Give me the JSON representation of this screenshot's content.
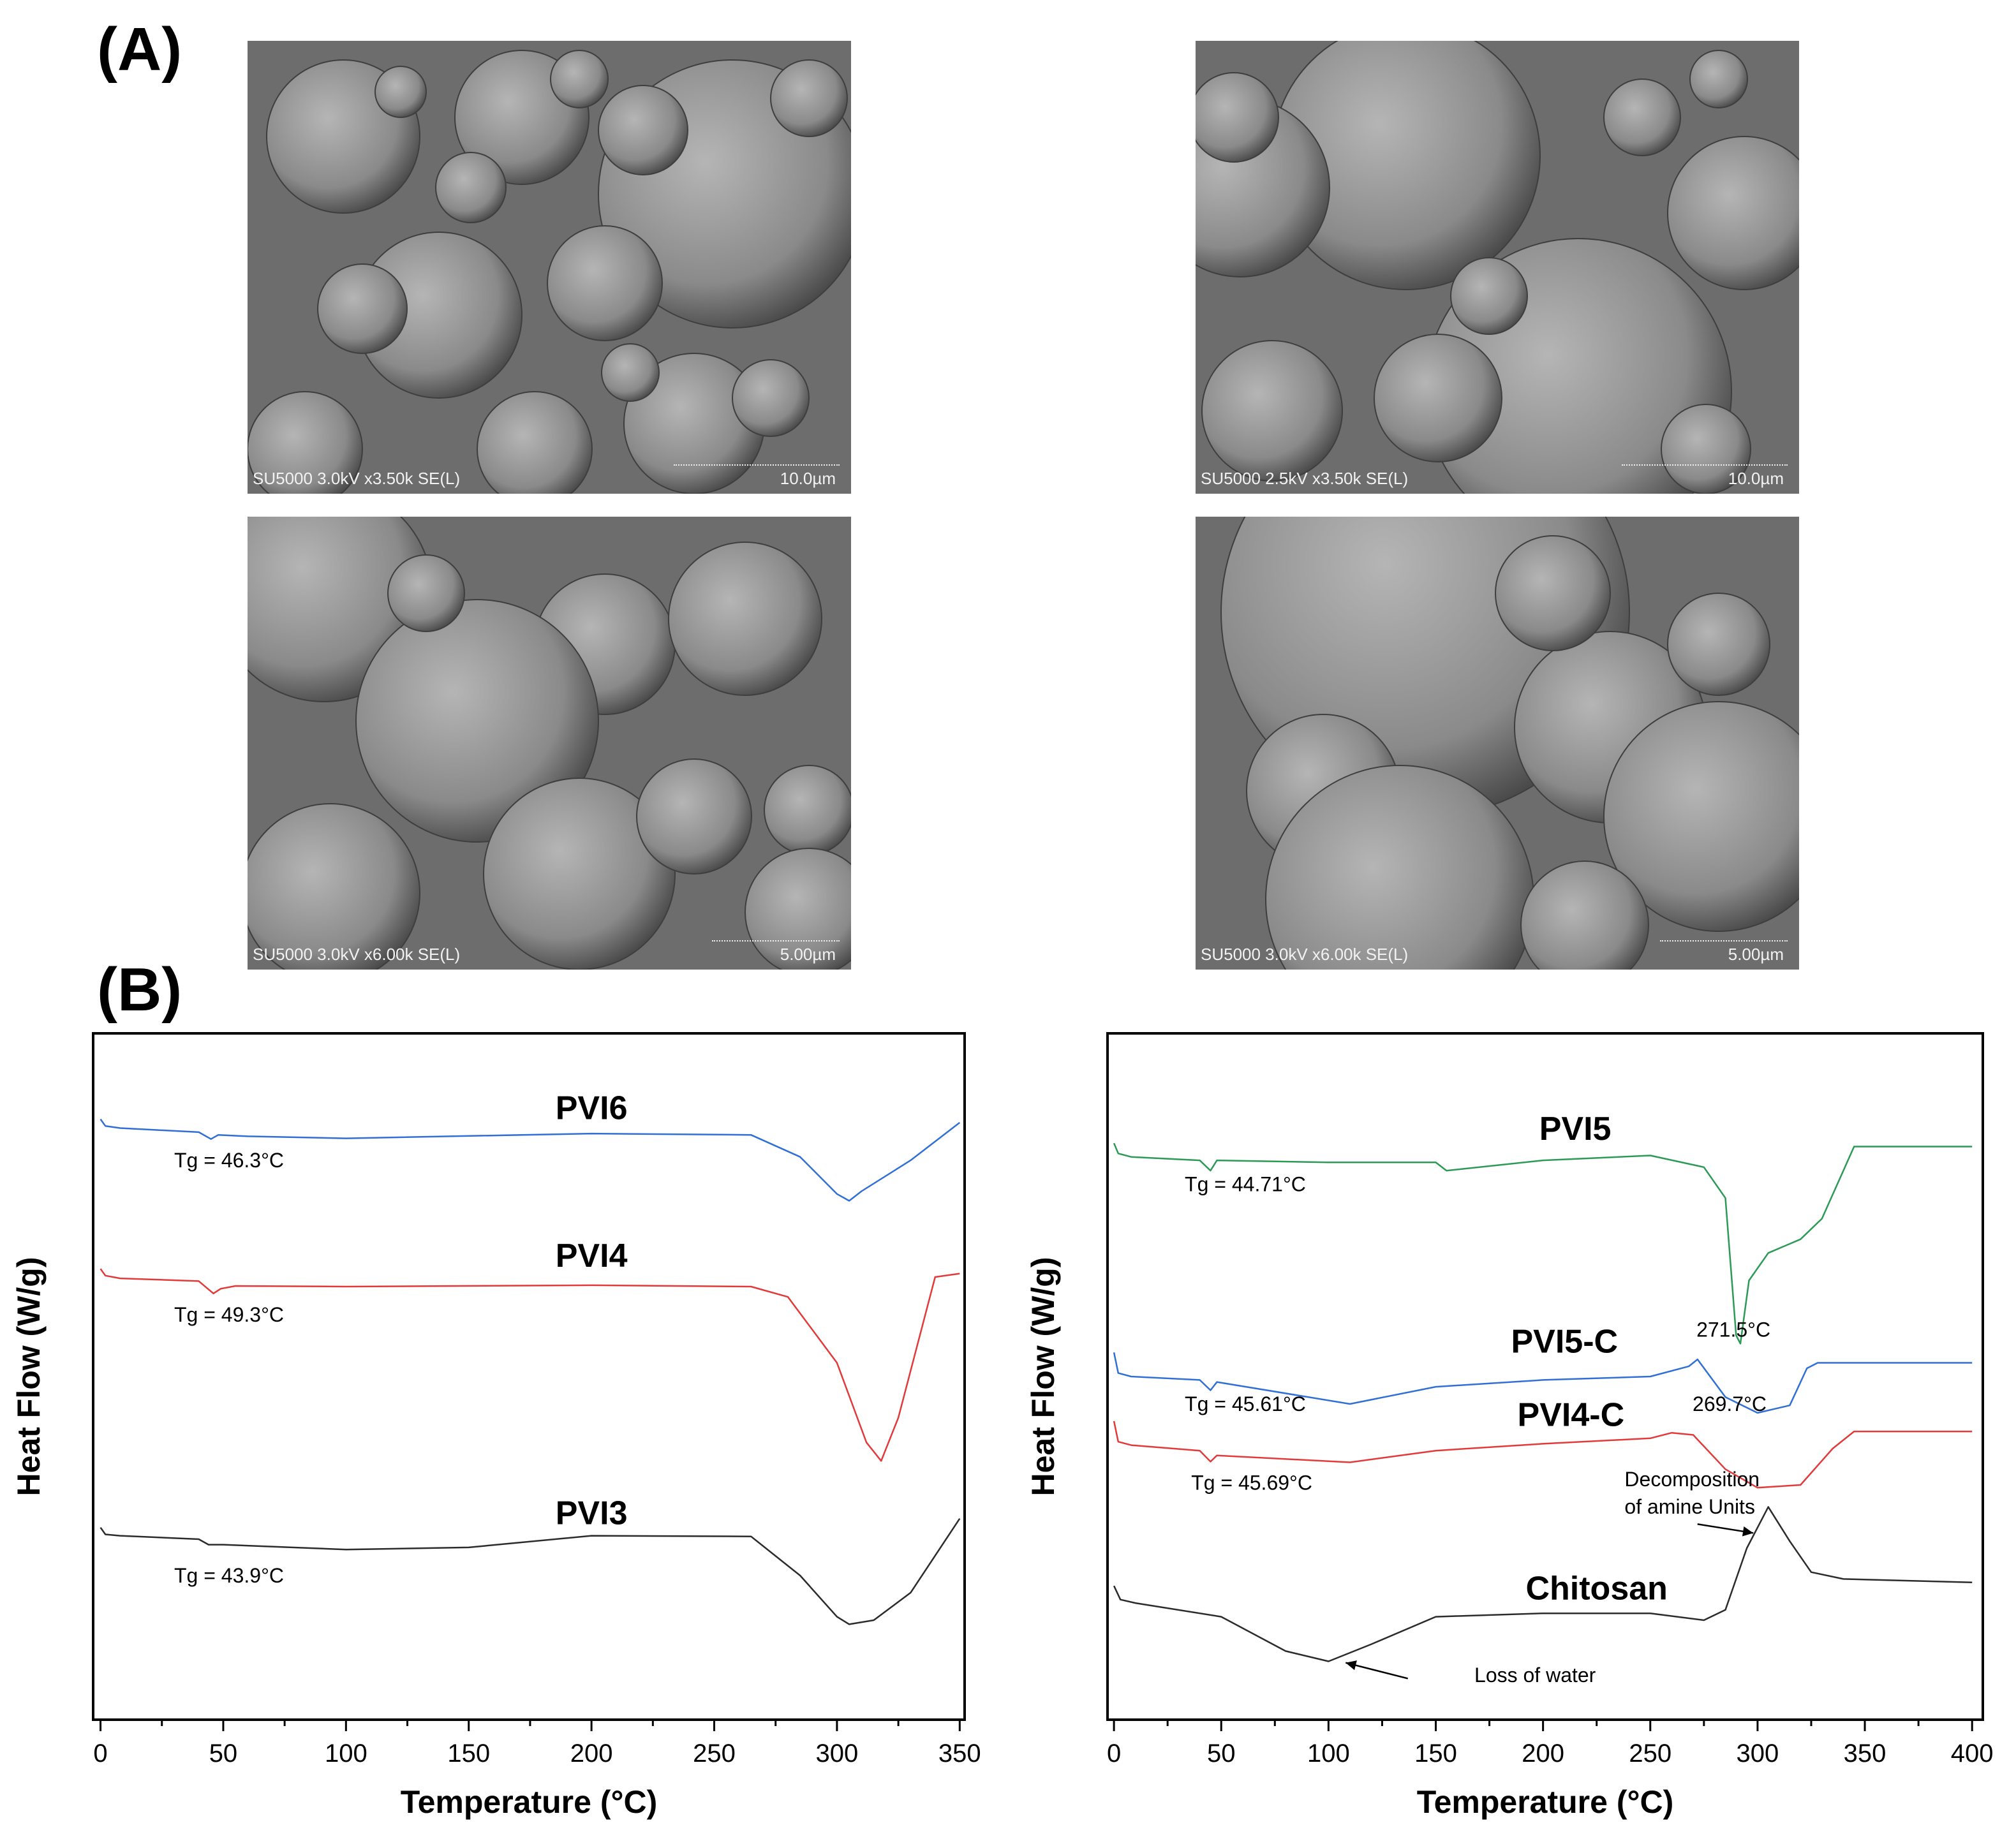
{
  "panels": {
    "a_label": "(A)",
    "b_label": "(B)"
  },
  "sem_images": [
    {
      "caption": "SU5000 3.0kV x3.50k SE(L)",
      "scale": "10.0µm"
    },
    {
      "caption": "SU5000 2.5kV x3.50k SE(L)",
      "scale": "10.0µm"
    },
    {
      "caption": "SU5000 3.0kV x6.00k SE(L)",
      "scale": "5.00µm"
    },
    {
      "caption": "SU5000 3.0kV x6.00k SE(L)",
      "scale": "5.00µm"
    }
  ],
  "chart_data": [
    {
      "type": "line",
      "xlabel": "Temperature (°C)",
      "ylabel": "Heat Flow (W/g)",
      "xlim": [
        -3,
        352
      ],
      "xticks": [
        0,
        50,
        100,
        150,
        200,
        250,
        300,
        350
      ],
      "ylim": [
        0,
        1
      ],
      "series": [
        {
          "name": "PVI6",
          "color": "#2f6fd6",
          "x": [
            0,
            2,
            8,
            40,
            45,
            48,
            60,
            100,
            200,
            265,
            285,
            300,
            305,
            310,
            330,
            350
          ],
          "y": [
            0.875,
            0.865,
            0.862,
            0.856,
            0.846,
            0.852,
            0.85,
            0.847,
            0.854,
            0.852,
            0.82,
            0.766,
            0.756,
            0.77,
            0.815,
            0.87
          ]
        },
        {
          "name": "PVI4",
          "color": "#e23a3a",
          "x": [
            0,
            2,
            8,
            40,
            46,
            49,
            55,
            100,
            200,
            265,
            280,
            300,
            312,
            318,
            325,
            340,
            350
          ],
          "y": [
            0.657,
            0.647,
            0.643,
            0.639,
            0.621,
            0.628,
            0.632,
            0.631,
            0.633,
            0.631,
            0.616,
            0.52,
            0.404,
            0.377,
            0.44,
            0.645,
            0.65
          ]
        },
        {
          "name": "PVI3",
          "color": "#2b2b2b",
          "x": [
            0,
            2,
            8,
            40,
            44,
            50,
            100,
            150,
            200,
            265,
            285,
            300,
            305,
            315,
            330,
            350
          ],
          "y": [
            0.28,
            0.27,
            0.268,
            0.263,
            0.255,
            0.255,
            0.248,
            0.251,
            0.268,
            0.267,
            0.21,
            0.15,
            0.139,
            0.145,
            0.185,
            0.293
          ]
        }
      ],
      "labels": [
        {
          "text": "PVI6",
          "x": 200,
          "y": 0.875,
          "weight": "bold"
        },
        {
          "text": "PVI4",
          "x": 200,
          "y": 0.66,
          "weight": "bold"
        },
        {
          "text": "PVI3",
          "x": 200,
          "y": 0.285,
          "weight": "bold"
        },
        {
          "text": "Tg = 46.3°C",
          "x": 30,
          "y": 0.805,
          "weight": "normal"
        },
        {
          "text": "Tg = 49.3°C",
          "x": 30,
          "y": 0.58,
          "weight": "normal"
        },
        {
          "text": "Tg = 43.9°C",
          "x": 30,
          "y": 0.2,
          "weight": "normal"
        }
      ],
      "annotations": []
    },
    {
      "type": "line",
      "xlabel": "Temperature (°C)",
      "ylabel": "Heat Flow (W/g)",
      "xlim": [
        -3,
        405
      ],
      "xticks": [
        0,
        50,
        100,
        150,
        200,
        250,
        300,
        350,
        400
      ],
      "ylim": [
        0,
        1
      ],
      "series": [
        {
          "name": "PVI5",
          "color": "#2b9a55",
          "x": [
            0,
            2,
            8,
            40,
            45,
            48,
            100,
            150,
            155,
            200,
            250,
            275,
            285,
            290,
            292,
            296,
            305,
            320,
            330,
            340,
            345,
            400
          ],
          "y": [
            0.84,
            0.825,
            0.82,
            0.815,
            0.8,
            0.815,
            0.812,
            0.812,
            0.8,
            0.815,
            0.822,
            0.805,
            0.76,
            0.56,
            0.548,
            0.64,
            0.68,
            0.7,
            0.73,
            0.8,
            0.835,
            0.835
          ]
        },
        {
          "name": "PVI5-C",
          "color": "#2f6fd6",
          "x": [
            0,
            2,
            8,
            40,
            45,
            48,
            110,
            150,
            200,
            250,
            268,
            272,
            285,
            300,
            315,
            323,
            328,
            400
          ],
          "y": [
            0.535,
            0.505,
            0.5,
            0.495,
            0.48,
            0.492,
            0.46,
            0.485,
            0.495,
            0.5,
            0.515,
            0.525,
            0.47,
            0.447,
            0.458,
            0.512,
            0.52,
            0.52
          ]
        },
        {
          "name": "PVI4-C",
          "color": "#e23a3a",
          "x": [
            0,
            2,
            8,
            40,
            45,
            48,
            110,
            150,
            200,
            250,
            260,
            270,
            285,
            300,
            320,
            335,
            345,
            400
          ],
          "y": [
            0.435,
            0.405,
            0.4,
            0.392,
            0.376,
            0.385,
            0.375,
            0.392,
            0.402,
            0.41,
            0.418,
            0.415,
            0.365,
            0.338,
            0.342,
            0.395,
            0.42,
            0.42
          ]
        },
        {
          "name": "Chitosan",
          "color": "#2b2b2b",
          "x": [
            0,
            3,
            10,
            50,
            80,
            100,
            120,
            150,
            200,
            250,
            275,
            285,
            295,
            305,
            315,
            325,
            340,
            400
          ],
          "y": [
            0.195,
            0.175,
            0.17,
            0.15,
            0.1,
            0.085,
            0.11,
            0.15,
            0.155,
            0.155,
            0.145,
            0.16,
            0.25,
            0.31,
            0.26,
            0.215,
            0.205,
            0.2
          ]
        }
      ],
      "labels": [
        {
          "text": "PVI5",
          "x": 215,
          "y": 0.845,
          "weight": "bold"
        },
        {
          "text": "PVI5-C",
          "x": 210,
          "y": 0.535,
          "weight": "bold"
        },
        {
          "text": "PVI4-C",
          "x": 213,
          "y": 0.428,
          "weight": "bold"
        },
        {
          "text": "Chitosan",
          "x": 225,
          "y": 0.175,
          "weight": "bold"
        },
        {
          "text": "271.5°C",
          "x": 271.5,
          "y": 0.558,
          "weight": "normal"
        },
        {
          "text": "269.7°C",
          "x": 269.7,
          "y": 0.45,
          "weight": "normal"
        },
        {
          "text": "Tg = 44.71°C",
          "x": 33,
          "y": 0.77,
          "weight": "normal"
        },
        {
          "text": "Tg = 45.61°C",
          "x": 33,
          "y": 0.45,
          "weight": "normal"
        },
        {
          "text": "Tg = 45.69°C",
          "x": 36,
          "y": 0.335,
          "weight": "normal"
        },
        {
          "text": "Decomposition",
          "x": 238,
          "y": 0.34,
          "weight": "normal"
        },
        {
          "text": "of amine Units",
          "x": 238,
          "y": 0.3,
          "weight": "normal"
        },
        {
          "text": "Loss of water",
          "x": 168,
          "y": 0.055,
          "weight": "normal"
        }
      ],
      "annotations": [
        {
          "name": "arrow-decomposition",
          "x1": 272,
          "y1": 0.285,
          "x2": 298,
          "y2": 0.272
        },
        {
          "name": "arrow-loss-of-water",
          "x1": 137,
          "y1": 0.06,
          "x2": 108,
          "y2": 0.083
        }
      ]
    }
  ]
}
